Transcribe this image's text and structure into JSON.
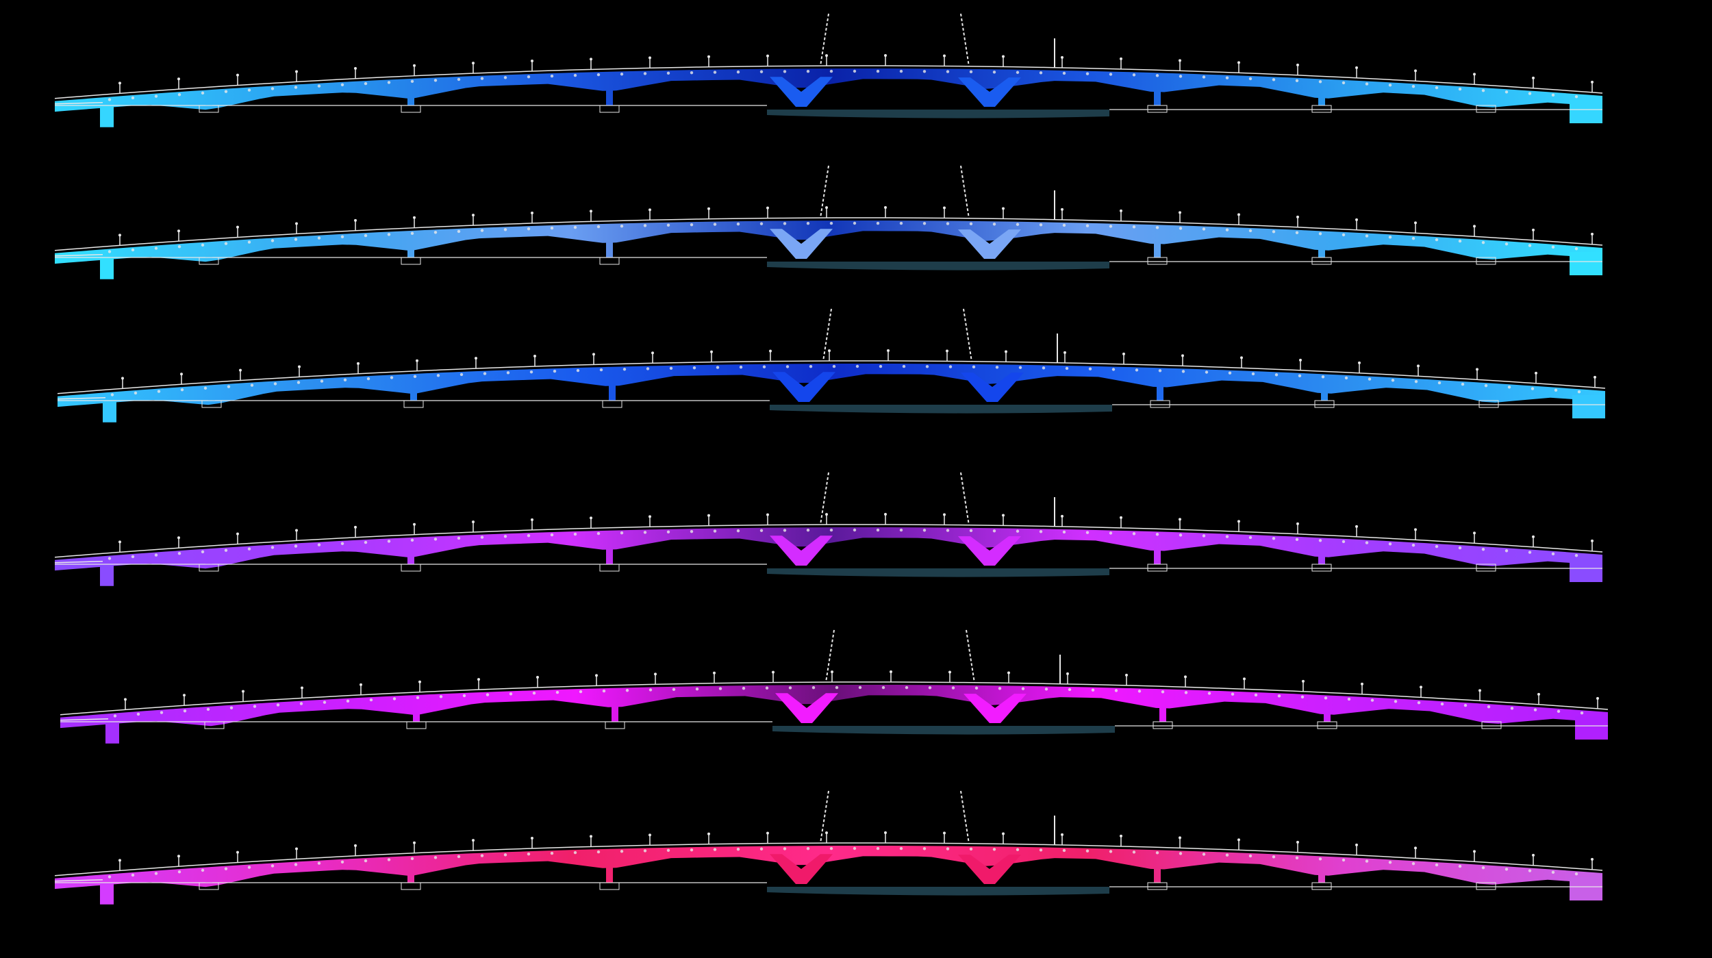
{
  "diagram": {
    "background": "#000000",
    "line_color": "#e8e8e8",
    "water_color": "#1e3d4a",
    "elevations": [
      {
        "id": "elevation-1",
        "gradient": [
          "#35d6ff",
          "#2a9df0",
          "#1a55e0",
          "#0a22a8",
          "#1a55e0",
          "#2a9df0",
          "#35d6ff"
        ],
        "leg_color": "#1a5cf0"
      },
      {
        "id": "elevation-2",
        "gradient": [
          "#32e0ff",
          "#3aa8f2",
          "#6a9ef2",
          "#1236b8",
          "#6a9ef2",
          "#3aa8f2",
          "#32e0ff"
        ],
        "leg_color": "#7aa6f5"
      },
      {
        "id": "elevation-3",
        "gradient": [
          "#34c8ff",
          "#2c8ef0",
          "#1a5cee",
          "#0e2cc8",
          "#1a5cee",
          "#2c8ef0",
          "#34c8ff"
        ],
        "leg_color": "#1446ec"
      },
      {
        "id": "elevation-4",
        "gradient": [
          "#8a4cff",
          "#a43cff",
          "#d030ff",
          "#5a1a9a",
          "#d030ff",
          "#a43cff",
          "#8a4cff"
        ],
        "leg_color": "#d42cff"
      },
      {
        "id": "elevation-5",
        "gradient": [
          "#a530ff",
          "#c820ff",
          "#f018ff",
          "#6a107a",
          "#f018ff",
          "#c820ff",
          "#b020ff"
        ],
        "leg_color": "#f21cff"
      },
      {
        "id": "elevation-6",
        "gradient": [
          "#d43cff",
          "#e82cc8",
          "#f0206a",
          "#ff2a8a",
          "#f0206a",
          "#e040d0",
          "#c860e8"
        ],
        "leg_color": "#f01a6a"
      }
    ]
  }
}
